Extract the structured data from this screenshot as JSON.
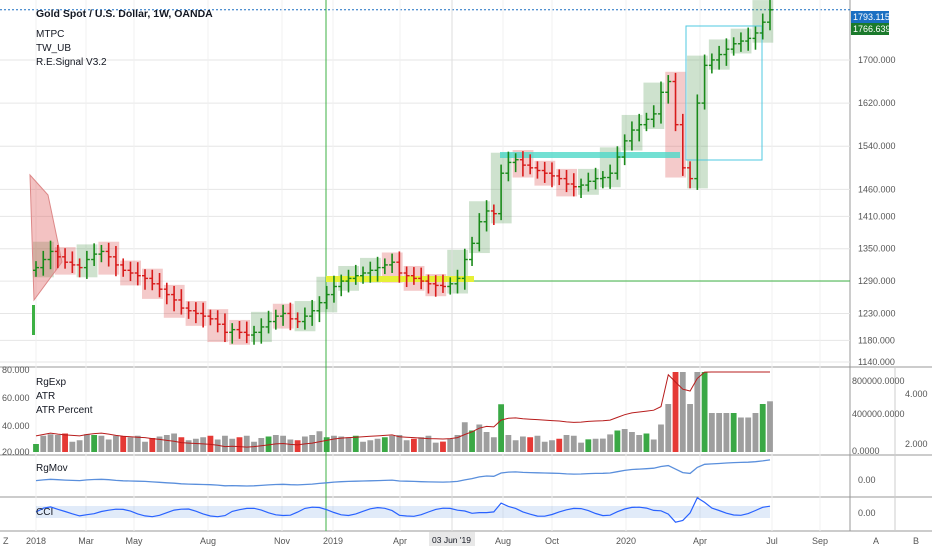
{
  "header": {
    "symbol": "Gold Spot / U.S. Dollar, 1W, OANDA",
    "indicators": [
      "MTPC",
      "TW_UB",
      "R.E.Signal V3.2"
    ]
  },
  "price_axis": {
    "ticks": [
      "1793.115",
      "1766.639",
      "1700.000",
      "1620.000",
      "1540.000",
      "1460.000",
      "1410.000",
      "1350.000",
      "1290.000",
      "1230.000",
      "1180.000",
      "1140.000"
    ],
    "last_price": "1793.115",
    "current_price": "1766.639"
  },
  "volume_pane": {
    "labels": [
      "RgExp",
      "ATR",
      "ATR Percent"
    ],
    "left_ticks": [
      "80.000",
      "60.000",
      "40.000",
      "20.000"
    ],
    "right_ticks": [
      "800000.0000",
      "400000.0000",
      "0.0000"
    ],
    "right_ticks2": [
      "4.000",
      "2.000"
    ]
  },
  "rgmov_pane": {
    "label": "RgMov",
    "tick": "0.00"
  },
  "cci_pane": {
    "label": "CCI",
    "tick": "0.00"
  },
  "time_axis": {
    "labels": [
      "2018",
      "Mar",
      "May",
      "Aug",
      "Nov",
      "2019",
      "Apr",
      "Aug",
      "Oct",
      "2020",
      "Apr",
      "Jul",
      "Sep"
    ],
    "cursor_label": "03 Jun '19"
  },
  "toolbar": {
    "left": "Z",
    "right_a": "A",
    "right_b": "B"
  },
  "colors": {
    "up": "#1a8a1a",
    "down": "#d81b1b",
    "neutral": "#333333",
    "accent": "#2e7d32",
    "grid": "#e6e6e6"
  },
  "chart_data": {
    "type": "bar",
    "title": "Gold Spot / U.S. Dollar, 1W, OANDA",
    "x_range": [
      "2018",
      "Sep 2020"
    ],
    "ylim": [
      1140,
      1800
    ],
    "series": [
      {
        "name": "close",
        "values": [
          1315,
          1330,
          1345,
          1335,
          1325,
          1320,
          1315,
          1330,
          1340,
          1345,
          1335,
          1320,
          1310,
          1305,
          1300,
          1295,
          1285,
          1275,
          1265,
          1255,
          1240,
          1235,
          1230,
          1225,
          1220,
          1210,
          1195,
          1200,
          1195,
          1190,
          1195,
          1205,
          1215,
          1225,
          1230,
          1220,
          1215,
          1225,
          1235,
          1250,
          1265,
          1280,
          1290,
          1295,
          1300,
          1305,
          1310,
          1315,
          1320,
          1325,
          1305,
          1300,
          1295,
          1290,
          1285,
          1282,
          1280,
          1285,
          1295,
          1330,
          1360,
          1400,
          1420,
          1415,
          1490,
          1510,
          1515,
          1505,
          1500,
          1495,
          1490,
          1485,
          1480,
          1470,
          1465,
          1468,
          1475,
          1480,
          1482,
          1490,
          1520,
          1550,
          1570,
          1580,
          1590,
          1600,
          1640,
          1660,
          1580,
          1500,
          1480,
          1620,
          1690,
          1700,
          1710,
          1720,
          1730,
          1735,
          1740,
          1750,
          1770,
          1793
        ]
      }
    ]
  }
}
